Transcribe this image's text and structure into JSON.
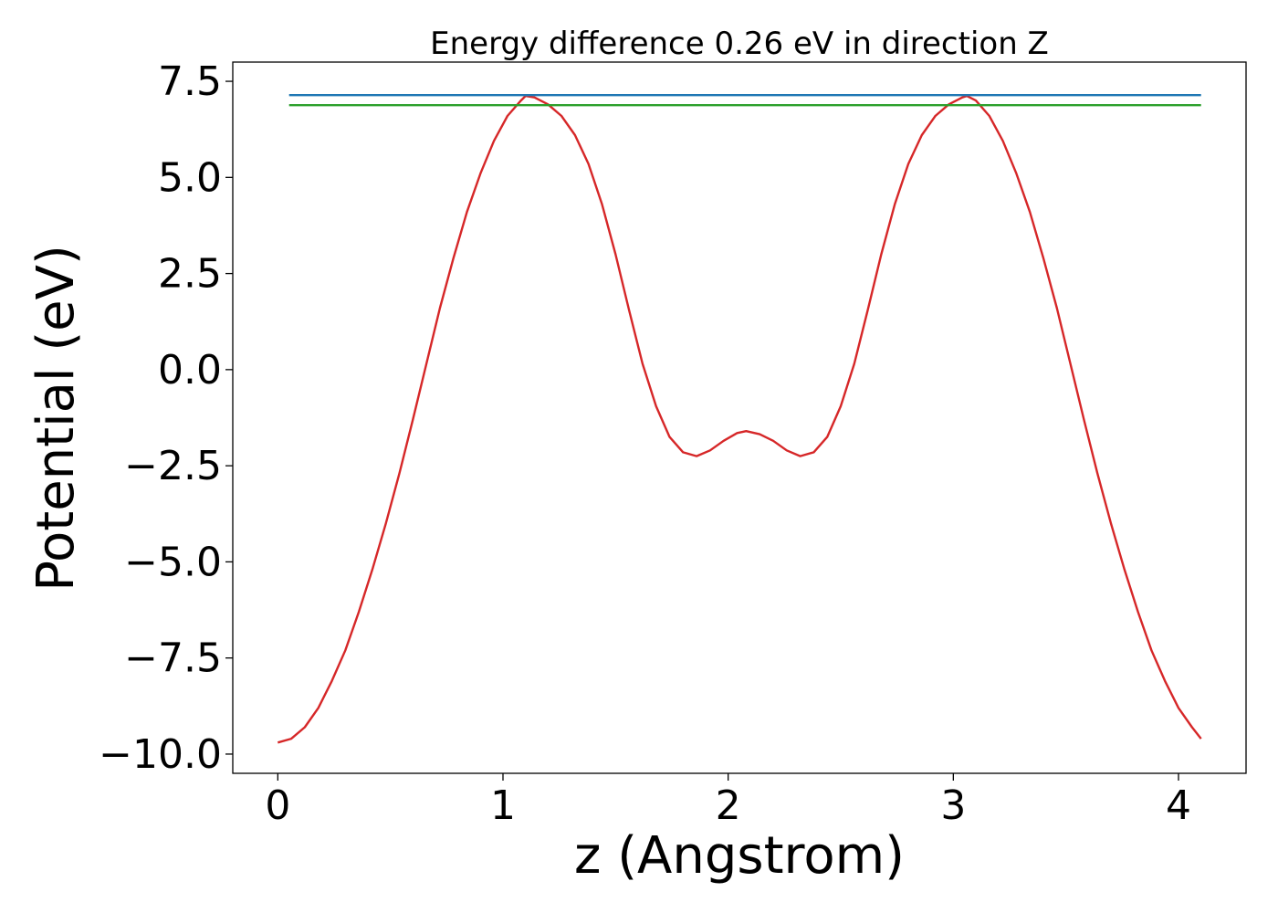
{
  "chart_data": {
    "type": "line",
    "title": "Energy difference 0.26 eV in direction Z",
    "xlabel": "z (Angstrom)",
    "ylabel": "Potential (eV)",
    "xlim": [
      -0.2,
      4.3
    ],
    "ylim": [
      -10.5,
      8.0
    ],
    "x_ticks": [
      0,
      1,
      2,
      3,
      4
    ],
    "x_tick_labels": [
      "0",
      "1",
      "2",
      "3",
      "4"
    ],
    "y_ticks": [
      7.5,
      5.0,
      2.5,
      0.0,
      -2.5,
      -5.0,
      -7.5,
      -10.0
    ],
    "y_tick_labels": [
      "7.5",
      "5.0",
      "2.5",
      "0.0",
      "−2.5",
      "−5.0",
      "−7.5",
      "−10.0"
    ],
    "grid": false,
    "series": [
      {
        "color": "#d62728",
        "x": [
          0.0,
          0.06,
          0.12,
          0.18,
          0.24,
          0.3,
          0.36,
          0.42,
          0.48,
          0.54,
          0.6,
          0.66,
          0.72,
          0.78,
          0.84,
          0.9,
          0.96,
          1.02,
          1.08,
          1.1,
          1.14,
          1.2,
          1.26,
          1.32,
          1.38,
          1.44,
          1.5,
          1.56,
          1.62,
          1.68,
          1.74,
          1.8,
          1.86,
          1.92,
          1.98,
          2.04,
          2.08,
          2.14,
          2.2,
          2.26,
          2.32,
          2.38,
          2.44,
          2.5,
          2.56,
          2.62,
          2.68,
          2.74,
          2.8,
          2.86,
          2.92,
          2.98,
          3.04,
          3.06,
          3.1,
          3.16,
          3.22,
          3.28,
          3.34,
          3.4,
          3.46,
          3.52,
          3.58,
          3.64,
          3.7,
          3.76,
          3.82,
          3.88,
          3.94,
          4.0,
          4.06,
          4.1
        ],
        "y": [
          -9.7,
          -9.6,
          -9.3,
          -8.8,
          -8.1,
          -7.3,
          -6.3,
          -5.2,
          -4.0,
          -2.7,
          -1.3,
          0.15,
          1.6,
          2.9,
          4.1,
          5.1,
          5.95,
          6.6,
          7.0,
          7.12,
          7.08,
          6.9,
          6.6,
          6.1,
          5.35,
          4.3,
          3.0,
          1.55,
          0.15,
          -0.95,
          -1.75,
          -2.15,
          -2.25,
          -2.1,
          -1.85,
          -1.65,
          -1.6,
          -1.68,
          -1.85,
          -2.1,
          -2.25,
          -2.15,
          -1.75,
          -0.95,
          0.15,
          1.55,
          3.0,
          4.3,
          5.35,
          6.1,
          6.6,
          6.9,
          7.08,
          7.12,
          7.0,
          6.6,
          5.95,
          5.1,
          4.1,
          2.9,
          1.6,
          0.15,
          -1.3,
          -2.7,
          -4.0,
          -5.2,
          -6.3,
          -7.3,
          -8.1,
          -8.8,
          -9.3,
          -9.6
        ]
      },
      {
        "color": "#1f77b4",
        "x": [
          0.05,
          4.1
        ],
        "y": [
          7.14,
          7.14
        ]
      },
      {
        "color": "#2ca02c",
        "x": [
          0.05,
          4.1
        ],
        "y": [
          6.88,
          6.88
        ]
      }
    ]
  }
}
